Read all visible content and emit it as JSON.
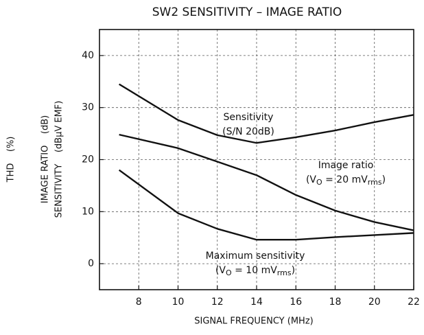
{
  "chart_data": {
    "type": "line",
    "title": "SW2  SENSITIVITY  –  IMAGE RATIO",
    "xlabel": "SIGNAL FREQUENCY   (MHz)",
    "ylabels": [
      "THD    (%)",
      "IMAGE RATIO    (dB)",
      "SENSITIVITY    (dBμV EMF)"
    ],
    "x": [
      7,
      10,
      12,
      14,
      16,
      18,
      20,
      22
    ],
    "series": [
      {
        "name": "Sensitivity",
        "color": "#111",
        "values": [
          34.5,
          27.6,
          24.7,
          23.2,
          24.3,
          25.6,
          27.2,
          28.6
        ]
      },
      {
        "name": "Image ratio",
        "color": "#111",
        "values": [
          24.8,
          22.2,
          19.6,
          17,
          13.2,
          10.2,
          8,
          6.4
        ]
      },
      {
        "name": "Maximum sensitivity",
        "color": "#111",
        "values": [
          18,
          9.7,
          6.7,
          4.6,
          4.6,
          5.1,
          5.5,
          5.9
        ]
      }
    ],
    "annotations": [
      {
        "lines": [
          [
            "Sensitivity"
          ],
          [
            "(S/N 20dB)"
          ]
        ]
      },
      {
        "lines": [
          [
            "Image ratio"
          ],
          [
            "(V",
            "O",
            " = 20 mV",
            "rms",
            ")"
          ]
        ]
      },
      {
        "lines": [
          [
            "Maximum sensitivity"
          ],
          [
            "(V",
            "O",
            " = 10 mV",
            "rms",
            ")"
          ]
        ]
      }
    ],
    "xlim": [
      6,
      22
    ],
    "xticks": [
      8,
      10,
      12,
      14,
      16,
      18,
      20,
      22
    ],
    "ylim": [
      -5,
      45
    ],
    "yticks": [
      0,
      10,
      20,
      30,
      40
    ],
    "grid": true,
    "legend": false
  }
}
